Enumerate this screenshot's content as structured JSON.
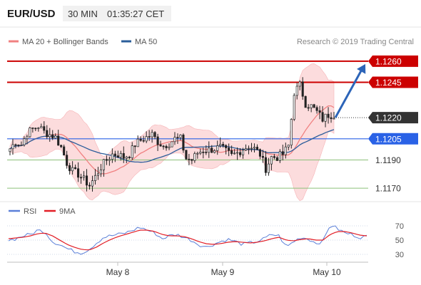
{
  "header": {
    "pair": "EUR/USD",
    "timeframe": "30 MIN",
    "time": "01:35:27 CET"
  },
  "legend": {
    "ma20_label": "MA 20 + Bollinger Bands",
    "ma50_label": "MA 50",
    "credit": "Research © 2019 Trading Central"
  },
  "rsi_legend": {
    "rsi_label": "RSI",
    "ma_label": "9MA"
  },
  "colors": {
    "resistance": "#cc0000",
    "support": "#2a62e6",
    "pivot": "#333333",
    "support_green": "#8cc07a",
    "ma20": "#f08080",
    "bollinger_fill": "#fbd0d2",
    "ma50": "#2b5d9a",
    "arrow": "#2c64b8",
    "candle_bull": "#ffffff",
    "candle_bear": "#222222",
    "rsi_line": "#5a7fd8",
    "rsi_ma": "#e21e26"
  },
  "chart_data": [
    {
      "type": "candlestick",
      "title": "EUR/USD",
      "timeframe": "30 MIN",
      "x_ticks": [
        "May 8",
        "May 9",
        "May 10"
      ],
      "ylim": [
        1.1163,
        1.1268
      ],
      "levels": [
        {
          "label": "1.1260",
          "value": 1.126,
          "kind": "resistance"
        },
        {
          "label": "1.1245",
          "value": 1.1245,
          "kind": "resistance"
        },
        {
          "label": "1.1220",
          "value": 1.122,
          "kind": "pivot"
        },
        {
          "label": "1.1205",
          "value": 1.1205,
          "kind": "support"
        },
        {
          "label": "1.1190",
          "value": 1.119,
          "kind": "support-minor"
        },
        {
          "label": "1.1170",
          "value": 1.117,
          "kind": "support-minor"
        }
      ],
      "series": [
        {
          "name": "MA 20 + Bollinger Bands",
          "indicator": "MA20"
        },
        {
          "name": "MA 50",
          "indicator": "MA50"
        }
      ],
      "price_anchors": [
        1.1198,
        1.1203,
        1.1201,
        1.1209,
        1.1212,
        1.1214,
        1.121,
        1.1208,
        1.1206,
        1.1199,
        1.1188,
        1.1182,
        1.118,
        1.1176,
        1.1172,
        1.1178,
        1.1185,
        1.119,
        1.1194,
        1.1194,
        1.1192,
        1.1194,
        1.1201,
        1.1204,
        1.1206,
        1.1208,
        1.1203,
        1.12,
        1.1202,
        1.1205,
        1.1205,
        1.1191,
        1.119,
        1.1195,
        1.1197,
        1.1197,
        1.1198,
        1.1199,
        1.1196,
        1.1193,
        1.1195,
        1.1198,
        1.12,
        1.1198,
        1.1194,
        1.1184,
        1.1192,
        1.1192,
        1.1194,
        1.12,
        1.1238,
        1.1243,
        1.123,
        1.1228,
        1.1224,
        1.1219,
        1.1222,
        1.1222
      ],
      "forecast_arrow": {
        "from": 1.122,
        "to": 1.126
      }
    },
    {
      "type": "line",
      "title": "RSI",
      "series": [
        {
          "name": "RSI"
        },
        {
          "name": "9MA"
        }
      ],
      "y_ticks": [
        30,
        50,
        70
      ],
      "ylim": [
        22,
        82
      ],
      "rsi_anchors": [
        50,
        52,
        56,
        58,
        64,
        62,
        48,
        44,
        38,
        34,
        32,
        37,
        46,
        54,
        56,
        58,
        60,
        64,
        68,
        64,
        60,
        52,
        56,
        58,
        54,
        50,
        44,
        40,
        44,
        48,
        51,
        48,
        44,
        46,
        48,
        52,
        58,
        56,
        40,
        48,
        54,
        52,
        46,
        48,
        72,
        66,
        60,
        58,
        54,
        55
      ],
      "ma_anchors": [
        52,
        53,
        54,
        56,
        59,
        60,
        56,
        50,
        44,
        40,
        37,
        36,
        40,
        46,
        51,
        55,
        58,
        61,
        64,
        64,
        62,
        58,
        56,
        56,
        55,
        52,
        48,
        45,
        44,
        45,
        47,
        48,
        47,
        46,
        47,
        49,
        52,
        54,
        50,
        49,
        51,
        52,
        50,
        50,
        58,
        62,
        62,
        60,
        57,
        56
      ]
    }
  ]
}
